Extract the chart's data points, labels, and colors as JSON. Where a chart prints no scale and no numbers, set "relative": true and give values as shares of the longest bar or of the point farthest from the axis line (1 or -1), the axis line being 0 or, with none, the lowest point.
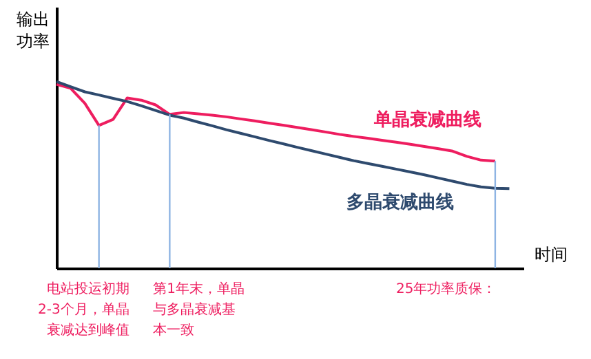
{
  "chart_data": {
    "type": "line",
    "relative": true,
    "xlabel": "时间",
    "ylabel": "输出功率",
    "marker": "none",
    "line_style": "solid",
    "categories": [
      null,
      null,
      null,
      null,
      null,
      null,
      null,
      null,
      null,
      null,
      null,
      null,
      null,
      null,
      null,
      null,
      null,
      null,
      null,
      null,
      null,
      null,
      null,
      null,
      null,
      null,
      null,
      null,
      null,
      null,
      null,
      null,
      null
    ],
    "series": [
      {
        "name": "单晶衰减曲线",
        "color": "#ee1d5f",
        "values": [
          0.985,
          0.964,
          0.884,
          0.765,
          0.797,
          0.912,
          0.9,
          0.875,
          0.824,
          0.834,
          0.827,
          0.82,
          0.811,
          0.8,
          0.789,
          0.777,
          0.766,
          0.754,
          0.742,
          0.73,
          0.717,
          0.706,
          0.696,
          0.685,
          0.675,
          0.664,
          0.652,
          0.64,
          0.627,
          0.599,
          0.579,
          0.574,
          null
        ]
      },
      {
        "name": "多晶衰减曲线",
        "color": "#2e4a6e",
        "values": [
          1.0,
          0.972,
          0.945,
          0.928,
          0.91,
          0.893,
          0.87,
          0.845,
          0.82,
          0.804,
          0.783,
          0.763,
          0.742,
          0.723,
          0.704,
          0.685,
          0.667,
          0.648,
          0.63,
          0.612,
          0.594,
          0.576,
          0.561,
          0.546,
          0.531,
          0.516,
          0.5,
          0.483,
          0.466,
          0.449,
          0.436,
          0.428,
          0.426
        ]
      }
    ],
    "annotations": [
      "电站投运初期2-3个月，单晶衰减达到峰值",
      "第1年末，单晶与多晶衰减基本一致",
      "25年功率质保："
    ]
  }
}
